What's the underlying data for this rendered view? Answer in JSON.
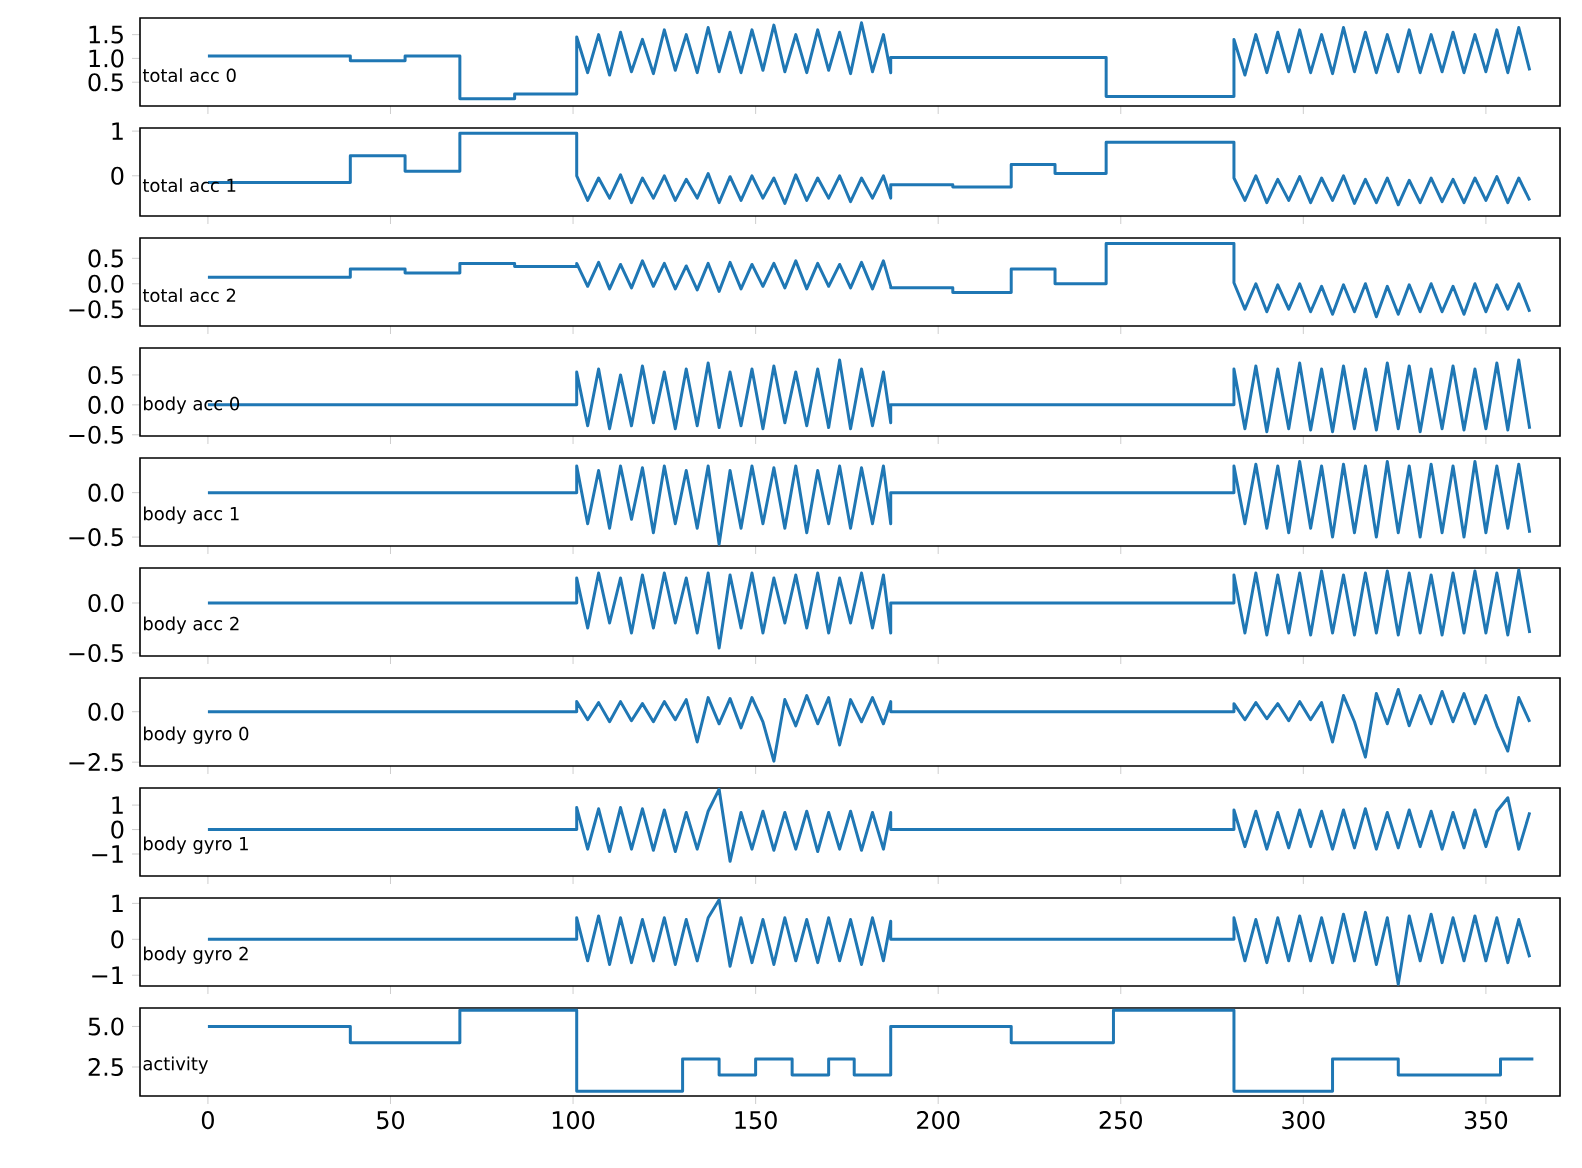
{
  "chart_data": [
    {
      "type": "line",
      "annotations": [
        "total acc 0"
      ],
      "color": "#1f77b4",
      "tick_labels": "y",
      "xlim": [
        -18.6,
        370.3
      ],
      "xticks": [
        0,
        50,
        100,
        150,
        200,
        250,
        300,
        350
      ],
      "ylim": [
        0.0,
        1.85
      ],
      "yticks": [
        {
          "value": 0.5,
          "label": "0.5"
        },
        {
          "value": 1,
          "label": "1.0"
        },
        {
          "value": 1.5,
          "label": "1.5"
        }
      ],
      "x": [
        0,
        39,
        39,
        54,
        54,
        69,
        69,
        84,
        84,
        101,
        101,
        104,
        107,
        110,
        113,
        116,
        119,
        122,
        125,
        128,
        131,
        134,
        137,
        140,
        143,
        146,
        149,
        152,
        155,
        158,
        161,
        164,
        167,
        170,
        173,
        176,
        179,
        182,
        185,
        187,
        187,
        246,
        246,
        281,
        281,
        284,
        287,
        290,
        293,
        296,
        299,
        302,
        305,
        308,
        311,
        314,
        317,
        320,
        323,
        326,
        329,
        332,
        335,
        338,
        341,
        344,
        347,
        350,
        353,
        356,
        359,
        362
      ],
      "values": [
        1.05,
        1.05,
        0.95,
        0.95,
        1.05,
        1.05,
        0.15,
        0.15,
        0.25,
        0.25,
        1.45,
        0.7,
        1.5,
        0.65,
        1.55,
        0.72,
        1.4,
        0.68,
        1.6,
        0.75,
        1.5,
        0.7,
        1.65,
        0.72,
        1.55,
        0.7,
        1.6,
        0.75,
        1.7,
        0.72,
        1.5,
        0.7,
        1.6,
        0.75,
        1.55,
        0.68,
        1.75,
        0.72,
        1.5,
        0.7,
        1.02,
        1.02,
        0.2,
        0.2,
        1.4,
        0.65,
        1.5,
        0.7,
        1.55,
        0.72,
        1.6,
        0.7,
        1.5,
        0.68,
        1.65,
        0.72,
        1.55,
        0.7,
        1.5,
        0.72,
        1.6,
        0.7,
        1.5,
        0.72,
        1.55,
        0.7,
        1.5,
        0.72,
        1.6,
        0.7,
        1.65,
        0.75
      ]
    },
    {
      "type": "line",
      "annotations": [
        "total acc 1"
      ],
      "color": "#1f77b4",
      "tick_labels": "y",
      "xlim": [
        -18.6,
        370.3
      ],
      "xticks": [
        0,
        50,
        100,
        150,
        200,
        250,
        300,
        350
      ],
      "ylim": [
        -0.9,
        1.07
      ],
      "yticks": [
        0,
        1
      ],
      "x": [
        0,
        39,
        39,
        54,
        54,
        69,
        69,
        101,
        101,
        104,
        107,
        110,
        113,
        116,
        119,
        122,
        125,
        128,
        131,
        134,
        137,
        140,
        143,
        146,
        149,
        152,
        155,
        158,
        161,
        164,
        167,
        170,
        173,
        176,
        179,
        182,
        185,
        187,
        187,
        204,
        204,
        220,
        220,
        232,
        232,
        246,
        246,
        281,
        281,
        284,
        287,
        290,
        293,
        296,
        299,
        302,
        305,
        308,
        311,
        314,
        317,
        320,
        323,
        326,
        329,
        332,
        335,
        338,
        341,
        344,
        347,
        350,
        353,
        356,
        359,
        362
      ],
      "values": [
        -0.15,
        -0.15,
        0.45,
        0.45,
        0.1,
        0.1,
        0.95,
        0.95,
        0.0,
        -0.55,
        -0.05,
        -0.5,
        0.02,
        -0.6,
        -0.05,
        -0.5,
        0.0,
        -0.55,
        -0.08,
        -0.5,
        0.05,
        -0.6,
        -0.02,
        -0.55,
        0.0,
        -0.5,
        -0.05,
        -0.62,
        0.02,
        -0.55,
        -0.05,
        -0.5,
        0.0,
        -0.58,
        -0.05,
        -0.5,
        0.0,
        -0.5,
        -0.2,
        -0.2,
        -0.25,
        -0.25,
        0.25,
        0.25,
        0.05,
        0.05,
        0.75,
        0.75,
        -0.05,
        -0.55,
        0.0,
        -0.6,
        -0.08,
        -0.55,
        -0.02,
        -0.6,
        -0.05,
        -0.55,
        0.0,
        -0.62,
        -0.08,
        -0.6,
        -0.05,
        -0.65,
        -0.1,
        -0.6,
        -0.05,
        -0.58,
        -0.08,
        -0.6,
        -0.05,
        -0.55,
        -0.02,
        -0.6,
        -0.05,
        -0.55
      ]
    },
    {
      "type": "line",
      "annotations": [
        "total acc 2"
      ],
      "color": "#1f77b4",
      "tick_labels": "y",
      "xlim": [
        -18.6,
        370.3
      ],
      "xticks": [
        0,
        50,
        100,
        150,
        200,
        250,
        300,
        350
      ],
      "ylim": [
        -0.83,
        0.9
      ],
      "yticks": [
        {
          "value": -0.5,
          "label": "−0.5"
        },
        {
          "value": 0,
          "label": "0.0"
        },
        {
          "value": 0.5,
          "label": "0.5"
        }
      ],
      "x": [
        0,
        39,
        39,
        54,
        54,
        69,
        69,
        84,
        84,
        101,
        101,
        104,
        107,
        110,
        113,
        116,
        119,
        122,
        125,
        128,
        131,
        134,
        137,
        140,
        143,
        146,
        149,
        152,
        155,
        158,
        161,
        164,
        167,
        170,
        173,
        176,
        179,
        182,
        185,
        187,
        187,
        204,
        204,
        220,
        220,
        232,
        232,
        246,
        246,
        281,
        281,
        284,
        287,
        290,
        293,
        296,
        299,
        302,
        305,
        308,
        311,
        314,
        317,
        320,
        323,
        326,
        329,
        332,
        335,
        338,
        341,
        344,
        347,
        350,
        353,
        356,
        359,
        362
      ],
      "values": [
        0.13,
        0.13,
        0.29,
        0.29,
        0.21,
        0.21,
        0.4,
        0.4,
        0.34,
        0.34,
        0.4,
        -0.05,
        0.42,
        -0.1,
        0.38,
        -0.08,
        0.45,
        -0.05,
        0.4,
        -0.1,
        0.35,
        -0.12,
        0.4,
        -0.15,
        0.42,
        -0.1,
        0.38,
        -0.05,
        0.4,
        -0.08,
        0.45,
        -0.1,
        0.4,
        -0.05,
        0.38,
        -0.08,
        0.42,
        -0.1,
        0.45,
        -0.05,
        -0.08,
        -0.08,
        -0.17,
        -0.17,
        0.29,
        0.29,
        0.0,
        0.0,
        0.79,
        0.79,
        0.02,
        -0.5,
        0.0,
        -0.55,
        -0.02,
        -0.5,
        0.0,
        -0.55,
        -0.05,
        -0.6,
        -0.02,
        -0.55,
        0.0,
        -0.65,
        -0.05,
        -0.6,
        -0.02,
        -0.55,
        0.0,
        -0.55,
        -0.05,
        -0.6,
        0.0,
        -0.55,
        -0.02,
        -0.5,
        0.0,
        -0.55
      ]
    },
    {
      "type": "line",
      "annotations": [
        "body acc 0"
      ],
      "color": "#1f77b4",
      "tick_labels": "y",
      "xlim": [
        -18.6,
        370.3
      ],
      "xticks": [
        0,
        50,
        100,
        150,
        200,
        250,
        300,
        350
      ],
      "ylim": [
        -0.52,
        0.95
      ],
      "yticks": [
        {
          "value": -0.5,
          "label": "−0.5"
        },
        {
          "value": 0,
          "label": "0.0"
        },
        {
          "value": 0.5,
          "label": "0.5"
        }
      ],
      "x": [
        0,
        101,
        101,
        104,
        107,
        110,
        113,
        116,
        119,
        122,
        125,
        128,
        131,
        134,
        137,
        140,
        143,
        146,
        149,
        152,
        155,
        158,
        161,
        164,
        167,
        170,
        173,
        176,
        179,
        182,
        185,
        187,
        187,
        281,
        281,
        284,
        287,
        290,
        293,
        296,
        299,
        302,
        305,
        308,
        311,
        314,
        317,
        320,
        323,
        326,
        329,
        332,
        335,
        338,
        341,
        344,
        347,
        350,
        353,
        356,
        359,
        362
      ],
      "values": [
        0,
        0,
        0.55,
        -0.35,
        0.6,
        -0.4,
        0.5,
        -0.35,
        0.65,
        -0.3,
        0.55,
        -0.4,
        0.6,
        -0.35,
        0.7,
        -0.38,
        0.55,
        -0.35,
        0.6,
        -0.4,
        0.65,
        -0.3,
        0.55,
        -0.35,
        0.6,
        -0.38,
        0.75,
        -0.4,
        0.6,
        -0.35,
        0.55,
        -0.3,
        0,
        0,
        0.6,
        -0.4,
        0.65,
        -0.45,
        0.6,
        -0.4,
        0.7,
        -0.42,
        0.6,
        -0.45,
        0.65,
        -0.4,
        0.6,
        -0.42,
        0.7,
        -0.4,
        0.65,
        -0.45,
        0.6,
        -0.4,
        0.65,
        -0.42,
        0.6,
        -0.4,
        0.7,
        -0.42,
        0.75,
        -0.4
      ]
    },
    {
      "type": "line",
      "annotations": [
        "body acc 1"
      ],
      "color": "#1f77b4",
      "tick_labels": "y",
      "xlim": [
        -18.6,
        370.3
      ],
      "xticks": [
        0,
        50,
        100,
        150,
        200,
        250,
        300,
        350
      ],
      "ylim": [
        -0.6,
        0.39
      ],
      "yticks": [
        {
          "value": -0.5,
          "label": "−0.5"
        },
        {
          "value": 0,
          "label": "0.0"
        }
      ],
      "x": [
        0,
        101,
        101,
        104,
        107,
        110,
        113,
        116,
        119,
        122,
        125,
        128,
        131,
        134,
        137,
        140,
        143,
        146,
        149,
        152,
        155,
        158,
        161,
        164,
        167,
        170,
        173,
        176,
        179,
        182,
        185,
        187,
        187,
        281,
        281,
        284,
        287,
        290,
        293,
        296,
        299,
        302,
        305,
        308,
        311,
        314,
        317,
        320,
        323,
        326,
        329,
        332,
        335,
        338,
        341,
        344,
        347,
        350,
        353,
        356,
        359,
        362
      ],
      "values": [
        0,
        0,
        0.3,
        -0.35,
        0.25,
        -0.4,
        0.3,
        -0.3,
        0.28,
        -0.45,
        0.3,
        -0.35,
        0.25,
        -0.4,
        0.3,
        -0.58,
        0.25,
        -0.4,
        0.3,
        -0.35,
        0.28,
        -0.4,
        0.3,
        -0.45,
        0.25,
        -0.35,
        0.3,
        -0.4,
        0.28,
        -0.35,
        0.3,
        -0.35,
        0,
        0,
        0.3,
        -0.35,
        0.32,
        -0.4,
        0.3,
        -0.45,
        0.35,
        -0.4,
        0.3,
        -0.5,
        0.32,
        -0.45,
        0.3,
        -0.5,
        0.35,
        -0.45,
        0.3,
        -0.5,
        0.32,
        -0.45,
        0.3,
        -0.5,
        0.35,
        -0.45,
        0.3,
        -0.4,
        0.32,
        -0.45
      ]
    },
    {
      "type": "line",
      "annotations": [
        "body acc 2"
      ],
      "color": "#1f77b4",
      "tick_labels": "y",
      "xlim": [
        -18.6,
        370.3
      ],
      "xticks": [
        0,
        50,
        100,
        150,
        200,
        250,
        300,
        350
      ],
      "ylim": [
        -0.53,
        0.35
      ],
      "yticks": [
        {
          "value": -0.5,
          "label": "−0.5"
        },
        {
          "value": 0,
          "label": "0.0"
        }
      ],
      "x": [
        0,
        101,
        101,
        104,
        107,
        110,
        113,
        116,
        119,
        122,
        125,
        128,
        131,
        134,
        137,
        140,
        143,
        146,
        149,
        152,
        155,
        158,
        161,
        164,
        167,
        170,
        173,
        176,
        179,
        182,
        185,
        187,
        187,
        281,
        281,
        284,
        287,
        290,
        293,
        296,
        299,
        302,
        305,
        308,
        311,
        314,
        317,
        320,
        323,
        326,
        329,
        332,
        335,
        338,
        341,
        344,
        347,
        350,
        353,
        356,
        359,
        362
      ],
      "values": [
        0,
        0,
        0.25,
        -0.25,
        0.3,
        -0.2,
        0.25,
        -0.3,
        0.28,
        -0.25,
        0.3,
        -0.2,
        0.25,
        -0.3,
        0.3,
        -0.45,
        0.28,
        -0.25,
        0.3,
        -0.3,
        0.25,
        -0.2,
        0.28,
        -0.25,
        0.3,
        -0.3,
        0.25,
        -0.2,
        0.3,
        -0.25,
        0.28,
        -0.3,
        0,
        0,
        0.28,
        -0.3,
        0.3,
        -0.32,
        0.28,
        -0.3,
        0.3,
        -0.32,
        0.32,
        -0.3,
        0.28,
        -0.32,
        0.3,
        -0.3,
        0.32,
        -0.32,
        0.3,
        -0.3,
        0.28,
        -0.32,
        0.3,
        -0.3,
        0.32,
        -0.3,
        0.3,
        -0.32,
        0.33,
        -0.3
      ]
    },
    {
      "type": "line",
      "annotations": [
        "body gyro 0"
      ],
      "color": "#1f77b4",
      "tick_labels": "y",
      "xlim": [
        -18.6,
        370.3
      ],
      "xticks": [
        0,
        50,
        100,
        150,
        200,
        250,
        300,
        350
      ],
      "ylim": [
        -2.69,
        1.67
      ],
      "yticks": [
        {
          "value": -2.5,
          "label": "−2.5"
        },
        {
          "value": 0,
          "label": "0.0"
        }
      ],
      "x": [
        0,
        101,
        101,
        104,
        107,
        110,
        113,
        116,
        119,
        122,
        125,
        128,
        131,
        134,
        137,
        140,
        143,
        146,
        149,
        152,
        155,
        158,
        161,
        164,
        167,
        170,
        173,
        176,
        179,
        182,
        185,
        187,
        187,
        281,
        281,
        284,
        287,
        290,
        293,
        296,
        299,
        302,
        305,
        308,
        311,
        314,
        317,
        320,
        323,
        326,
        329,
        332,
        335,
        338,
        341,
        344,
        347,
        350,
        353,
        356,
        359,
        362
      ],
      "values": [
        0,
        0,
        0.5,
        -0.4,
        0.45,
        -0.5,
        0.5,
        -0.45,
        0.4,
        -0.5,
        0.5,
        -0.4,
        0.6,
        -1.5,
        0.7,
        -0.6,
        0.65,
        -0.8,
        0.7,
        -0.5,
        -2.45,
        0.6,
        -0.7,
        0.8,
        -0.6,
        0.7,
        -1.65,
        0.6,
        -0.5,
        0.7,
        -0.6,
        0.5,
        0,
        0,
        0.4,
        -0.4,
        0.45,
        -0.35,
        0.4,
        -0.45,
        0.5,
        -0.4,
        0.45,
        -1.5,
        0.8,
        -0.5,
        -2.25,
        0.9,
        -0.6,
        1.1,
        -0.7,
        0.8,
        -0.6,
        1.0,
        -0.5,
        0.9,
        -0.6,
        0.8,
        -0.7,
        -1.95,
        0.7,
        -0.5
      ]
    },
    {
      "type": "line",
      "annotations": [
        "body gyro 1"
      ],
      "color": "#1f77b4",
      "tick_labels": "y",
      "xlim": [
        -18.6,
        370.3
      ],
      "xticks": [
        0,
        50,
        100,
        150,
        200,
        250,
        300,
        350
      ],
      "ylim": [
        -1.9,
        1.7
      ],
      "yticks": [
        {
          "value": -1,
          "label": "−1"
        },
        0,
        1
      ],
      "x": [
        0,
        101,
        101,
        104,
        107,
        110,
        113,
        116,
        119,
        122,
        125,
        128,
        131,
        134,
        137,
        140,
        143,
        146,
        149,
        152,
        155,
        158,
        161,
        164,
        167,
        170,
        173,
        176,
        179,
        182,
        185,
        187,
        187,
        281,
        281,
        284,
        287,
        290,
        293,
        296,
        299,
        302,
        305,
        308,
        311,
        314,
        317,
        320,
        323,
        326,
        329,
        332,
        335,
        338,
        341,
        344,
        347,
        350,
        353,
        356,
        359,
        362
      ],
      "values": [
        0,
        0,
        0.9,
        -0.8,
        0.85,
        -0.9,
        0.9,
        -0.8,
        0.85,
        -0.85,
        0.8,
        -0.9,
        0.7,
        -0.8,
        0.75,
        1.65,
        -1.3,
        0.7,
        -0.8,
        0.75,
        -0.85,
        0.7,
        -0.8,
        0.75,
        -0.9,
        0.7,
        -0.8,
        0.75,
        -0.85,
        0.7,
        -0.8,
        0.7,
        0,
        0,
        0.8,
        -0.7,
        0.75,
        -0.8,
        0.7,
        -0.75,
        0.8,
        -0.7,
        0.75,
        -0.8,
        0.8,
        -0.75,
        0.85,
        -0.8,
        0.7,
        -0.75,
        0.8,
        -0.7,
        0.75,
        -0.8,
        0.7,
        -0.75,
        0.8,
        -0.7,
        0.75,
        1.3,
        -0.8,
        0.7
      ]
    },
    {
      "type": "line",
      "annotations": [
        "body gyro 2"
      ],
      "color": "#1f77b4",
      "tick_labels": "y",
      "xlim": [
        -18.6,
        370.3
      ],
      "xticks": [
        0,
        50,
        100,
        150,
        200,
        250,
        300,
        350
      ],
      "ylim": [
        -1.3,
        1.15
      ],
      "yticks": [
        {
          "value": -1,
          "label": "−1"
        },
        0,
        1
      ],
      "x": [
        0,
        101,
        101,
        104,
        107,
        110,
        113,
        116,
        119,
        122,
        125,
        128,
        131,
        134,
        137,
        140,
        143,
        146,
        149,
        152,
        155,
        158,
        161,
        164,
        167,
        170,
        173,
        176,
        179,
        182,
        185,
        187,
        187,
        281,
        281,
        284,
        287,
        290,
        293,
        296,
        299,
        302,
        305,
        308,
        311,
        314,
        317,
        320,
        323,
        326,
        329,
        332,
        335,
        338,
        341,
        344,
        347,
        350,
        353,
        356,
        359,
        362
      ],
      "values": [
        0,
        0,
        0.6,
        -0.6,
        0.65,
        -0.7,
        0.6,
        -0.65,
        0.55,
        -0.6,
        0.6,
        -0.7,
        0.55,
        -0.6,
        0.6,
        1.1,
        -0.75,
        0.6,
        -0.65,
        0.55,
        -0.7,
        0.6,
        -0.6,
        0.55,
        -0.65,
        0.6,
        -0.6,
        0.55,
        -0.7,
        0.6,
        -0.6,
        0.5,
        0,
        0,
        0.6,
        -0.6,
        0.55,
        -0.65,
        0.6,
        -0.6,
        0.65,
        -0.6,
        0.6,
        -0.65,
        0.7,
        -0.6,
        0.75,
        -0.7,
        0.6,
        -1.25,
        0.65,
        -0.6,
        0.7,
        -0.65,
        0.6,
        -0.6,
        0.65,
        -0.6,
        0.6,
        -0.65,
        0.55,
        -0.5
      ]
    },
    {
      "type": "line",
      "annotations": [
        "activity"
      ],
      "color": "#1f77b4",
      "xlim": [
        -18.6,
        370.3
      ],
      "xticks": [
        0,
        50,
        100,
        150,
        200,
        250,
        300,
        350
      ],
      "ylim": [
        0.71,
        6.14
      ],
      "yticks": [
        {
          "value": 2.5,
          "label": "2.5"
        },
        {
          "value": 5,
          "label": "5.0"
        }
      ],
      "x": [
        0,
        39,
        39,
        69,
        69,
        101,
        101,
        130,
        130,
        140,
        140,
        150,
        150,
        160,
        160,
        170,
        170,
        177,
        177,
        187,
        187,
        220,
        220,
        248,
        248,
        281,
        281,
        308,
        308,
        326,
        326,
        354,
        354,
        363
      ],
      "values": [
        5,
        5,
        4,
        4,
        6,
        6,
        1,
        1,
        3,
        3,
        2,
        2,
        3,
        3,
        2,
        2,
        3,
        3,
        2,
        2,
        5,
        5,
        4,
        4,
        6,
        6,
        1,
        1,
        3,
        3,
        2,
        2,
        3,
        3
      ]
    }
  ]
}
